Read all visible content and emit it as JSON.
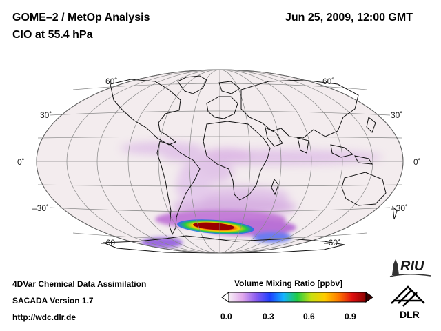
{
  "header": {
    "title": "GOME–2 / MetOp Analysis",
    "subtitle": "ClO at 55.4 hPa",
    "datetime": "Jun 25, 2009, 12:00 GMT"
  },
  "map": {
    "projection": "Hammer-Aitoff",
    "lat_labels_left": [
      "60˚",
      "30˚",
      "0˚",
      "–30˚",
      "–60"
    ],
    "lat_labels_right": [
      "60˚",
      "30˚",
      "0˚",
      "–30˚",
      "–60˚"
    ]
  },
  "footer": {
    "line1": "4DVar Chemical Data Assimilation",
    "line2": "SACADA Version 1.7",
    "line3": "http://wdc.dlr.de"
  },
  "colorbar": {
    "title": "Volume Mixing Ratio [ppbv]",
    "ticks": [
      "0.0",
      "0.3",
      "0.6",
      "0.9"
    ],
    "vmin": 0.0,
    "vmax": 1.0
  },
  "logos": {
    "riu": "RIU",
    "dlr": "DLR"
  },
  "colors": {
    "ocean_bg": "#f3ecee",
    "low_purple": "#dcb9e6",
    "mid_purple": "#c98ad8",
    "high_red": "#c01a1a"
  }
}
